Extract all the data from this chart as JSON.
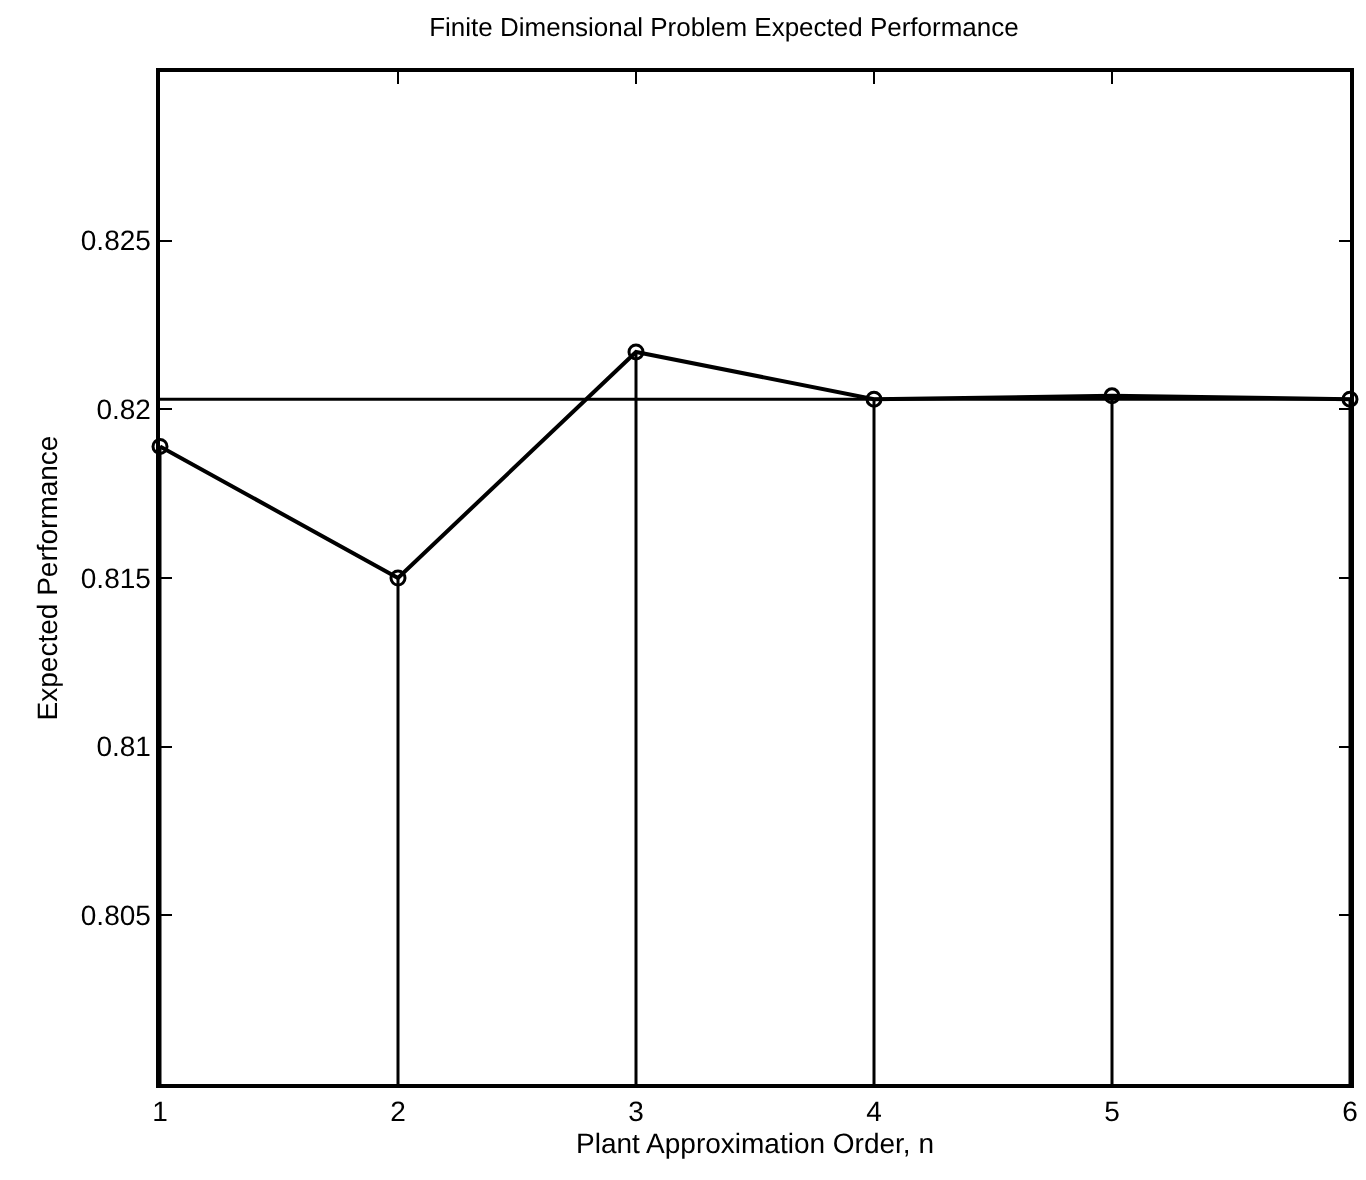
{
  "chart_data": {
    "type": "lollipop",
    "title": "Finite Dimensional Problem Expected Performance",
    "xlabel": "Plant Approximation Order, n",
    "ylabel": "Expected Performance",
    "x": [
      1,
      2,
      3,
      4,
      5,
      6
    ],
    "series": [
      {
        "color": "#000000",
        "marker": "circle",
        "values": [
          0.8189,
          0.815,
          0.8217,
          0.8203,
          0.8204,
          0.8203
        ]
      },
      {
        "type": "line",
        "color": "#000000",
        "line_style": "solid",
        "values": [
          0.8189,
          0.815,
          0.8217,
          0.8203,
          0.8204,
          0.8203
        ]
      }
    ],
    "ref_lines": [
      {
        "axis": "y",
        "value": 0.8203,
        "color": "#000000"
      }
    ],
    "xlim": [
      1,
      6
    ],
    "xticks": [
      1,
      2,
      3,
      4,
      5,
      6
    ],
    "ylim": [
      0.8,
      0.83
    ],
    "yticks": [
      0.805,
      0.81,
      0.815,
      0.82,
      0.825
    ]
  }
}
